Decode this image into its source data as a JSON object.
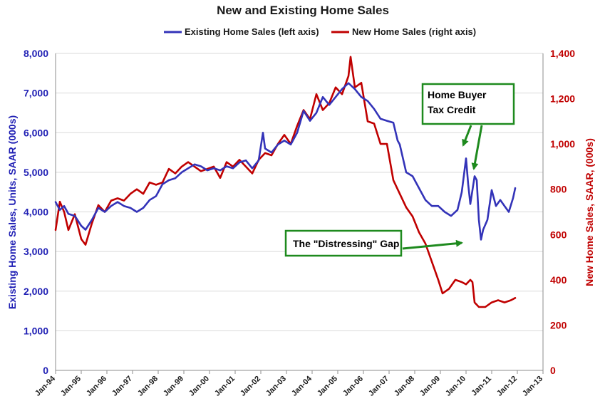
{
  "chart_data": {
    "type": "line",
    "title": "New and Existing Home Sales",
    "ylabel_left": "Existing Home Sales, Units, SAAR (000s)",
    "ylabel_right": "New Home Sales, SAAR, (000s)",
    "y_left_range": [
      0,
      8000
    ],
    "y_right_range": [
      0,
      1400
    ],
    "y_left_ticks": [
      "0",
      "1,000",
      "2,000",
      "3,000",
      "4,000",
      "5,000",
      "6,000",
      "7,000",
      "8,000"
    ],
    "y_right_ticks": [
      "0",
      "200",
      "400",
      "600",
      "800",
      "1,000",
      "1,200",
      "1,400"
    ],
    "x_range": [
      "1994-01",
      "2013-01"
    ],
    "x_ticks": [
      "Jan-94",
      "Jan-95",
      "Jan-96",
      "Jan-97",
      "Jan-98",
      "Jan-99",
      "Jan-00",
      "Jan-01",
      "Jan-02",
      "Jan-03",
      "Jan-04",
      "Jan-05",
      "Jan-06",
      "Jan-07",
      "Jan-08",
      "Jan-09",
      "Jan-10",
      "Jan-11",
      "Jan-12",
      "Jan-13"
    ],
    "grid": "horizontal",
    "legend_position": "top-center",
    "series": [
      {
        "name": "Existing Home Sales (left axis)",
        "axis": "left",
        "color": "#3333b8",
        "points": [
          [
            "1994-01",
            4250
          ],
          [
            "1994-03",
            4050
          ],
          [
            "1994-05",
            4150
          ],
          [
            "1994-07",
            3950
          ],
          [
            "1994-10",
            3900
          ],
          [
            "1995-01",
            3650
          ],
          [
            "1995-03",
            3550
          ],
          [
            "1995-06",
            3800
          ],
          [
            "1995-09",
            4100
          ],
          [
            "1995-12",
            4000
          ],
          [
            "1996-03",
            4150
          ],
          [
            "1996-06",
            4250
          ],
          [
            "1996-09",
            4150
          ],
          [
            "1996-12",
            4100
          ],
          [
            "1997-03",
            4000
          ],
          [
            "1997-06",
            4100
          ],
          [
            "1997-09",
            4300
          ],
          [
            "1997-12",
            4400
          ],
          [
            "1998-03",
            4700
          ],
          [
            "1998-06",
            4800
          ],
          [
            "1998-09",
            4850
          ],
          [
            "1998-12",
            5000
          ],
          [
            "1999-03",
            5100
          ],
          [
            "1999-06",
            5200
          ],
          [
            "1999-09",
            5150
          ],
          [
            "1999-12",
            5050
          ],
          [
            "2000-03",
            5100
          ],
          [
            "2000-06",
            5050
          ],
          [
            "2000-09",
            5150
          ],
          [
            "2000-12",
            5100
          ],
          [
            "2001-03",
            5250
          ],
          [
            "2001-06",
            5300
          ],
          [
            "2001-09",
            5100
          ],
          [
            "2001-12",
            5300
          ],
          [
            "2002-02",
            6000
          ],
          [
            "2002-03",
            5600
          ],
          [
            "2002-06",
            5500
          ],
          [
            "2002-09",
            5700
          ],
          [
            "2002-12",
            5800
          ],
          [
            "2003-03",
            5700
          ],
          [
            "2003-06",
            6000
          ],
          [
            "2003-09",
            6550
          ],
          [
            "2003-12",
            6300
          ],
          [
            "2004-03",
            6500
          ],
          [
            "2004-06",
            6900
          ],
          [
            "2004-09",
            6700
          ],
          [
            "2004-12",
            6900
          ],
          [
            "2005-03",
            7100
          ],
          [
            "2005-06",
            7250
          ],
          [
            "2005-09",
            7100
          ],
          [
            "2005-12",
            6900
          ],
          [
            "2006-03",
            6800
          ],
          [
            "2006-06",
            6600
          ],
          [
            "2006-09",
            6350
          ],
          [
            "2006-12",
            6300
          ],
          [
            "2007-03",
            6250
          ],
          [
            "2007-05",
            5800
          ],
          [
            "2007-06",
            5700
          ],
          [
            "2007-09",
            5000
          ],
          [
            "2007-12",
            4900
          ],
          [
            "2008-03",
            4600
          ],
          [
            "2008-06",
            4300
          ],
          [
            "2008-09",
            4150
          ],
          [
            "2008-12",
            4150
          ],
          [
            "2009-03",
            4000
          ],
          [
            "2009-06",
            3900
          ],
          [
            "2009-09",
            4050
          ],
          [
            "2009-11",
            4500
          ],
          [
            "2010-01",
            5350
          ],
          [
            "2010-02",
            4700
          ],
          [
            "2010-03",
            4200
          ],
          [
            "2010-05",
            4900
          ],
          [
            "2010-06",
            4800
          ],
          [
            "2010-07",
            3800
          ],
          [
            "2010-08",
            3300
          ],
          [
            "2010-09",
            3550
          ],
          [
            "2010-11",
            3800
          ],
          [
            "2011-01",
            4550
          ],
          [
            "2011-03",
            4150
          ],
          [
            "2011-05",
            4300
          ],
          [
            "2011-07",
            4150
          ],
          [
            "2011-09",
            4000
          ],
          [
            "2011-11",
            4350
          ],
          [
            "2011-12",
            4600
          ]
        ]
      },
      {
        "name": "New Home Sales (right axis)",
        "axis": "right",
        "color": "#c00000",
        "points": [
          [
            "1994-01",
            620
          ],
          [
            "1994-03",
            745
          ],
          [
            "1994-05",
            700
          ],
          [
            "1994-07",
            620
          ],
          [
            "1994-10",
            690
          ],
          [
            "1995-01",
            580
          ],
          [
            "1995-03",
            555
          ],
          [
            "1995-06",
            650
          ],
          [
            "1995-09",
            730
          ],
          [
            "1995-12",
            700
          ],
          [
            "1996-03",
            750
          ],
          [
            "1996-06",
            760
          ],
          [
            "1996-09",
            750
          ],
          [
            "1996-12",
            780
          ],
          [
            "1997-03",
            800
          ],
          [
            "1997-06",
            780
          ],
          [
            "1997-09",
            830
          ],
          [
            "1997-12",
            820
          ],
          [
            "1998-03",
            830
          ],
          [
            "1998-06",
            890
          ],
          [
            "1998-09",
            870
          ],
          [
            "1998-12",
            900
          ],
          [
            "1999-03",
            920
          ],
          [
            "1999-06",
            900
          ],
          [
            "1999-09",
            880
          ],
          [
            "1999-12",
            890
          ],
          [
            "2000-03",
            900
          ],
          [
            "2000-06",
            850
          ],
          [
            "2000-09",
            920
          ],
          [
            "2000-12",
            900
          ],
          [
            "2001-03",
            930
          ],
          [
            "2001-06",
            900
          ],
          [
            "2001-09",
            870
          ],
          [
            "2001-12",
            930
          ],
          [
            "2002-03",
            960
          ],
          [
            "2002-06",
            950
          ],
          [
            "2002-09",
            1000
          ],
          [
            "2002-12",
            1040
          ],
          [
            "2003-03",
            1000
          ],
          [
            "2003-06",
            1080
          ],
          [
            "2003-09",
            1150
          ],
          [
            "2003-12",
            1110
          ],
          [
            "2004-03",
            1220
          ],
          [
            "2004-06",
            1150
          ],
          [
            "2004-09",
            1180
          ],
          [
            "2004-12",
            1250
          ],
          [
            "2005-03",
            1220
          ],
          [
            "2005-06",
            1300
          ],
          [
            "2005-07",
            1385
          ],
          [
            "2005-09",
            1250
          ],
          [
            "2005-12",
            1270
          ],
          [
            "2006-03",
            1100
          ],
          [
            "2006-06",
            1090
          ],
          [
            "2006-09",
            1000
          ],
          [
            "2006-12",
            1000
          ],
          [
            "2007-03",
            840
          ],
          [
            "2007-06",
            780
          ],
          [
            "2007-09",
            720
          ],
          [
            "2007-12",
            680
          ],
          [
            "2008-03",
            610
          ],
          [
            "2008-06",
            560
          ],
          [
            "2008-09",
            480
          ],
          [
            "2008-12",
            400
          ],
          [
            "2009-02",
            340
          ],
          [
            "2009-05",
            360
          ],
          [
            "2009-08",
            400
          ],
          [
            "2009-11",
            390
          ],
          [
            "2010-01",
            380
          ],
          [
            "2010-03",
            400
          ],
          [
            "2010-04",
            390
          ],
          [
            "2010-05",
            300
          ],
          [
            "2010-07",
            280
          ],
          [
            "2010-10",
            280
          ],
          [
            "2011-01",
            300
          ],
          [
            "2011-04",
            310
          ],
          [
            "2011-07",
            300
          ],
          [
            "2011-10",
            310
          ],
          [
            "2011-12",
            320
          ]
        ]
      }
    ],
    "annotations": [
      {
        "text_lines": [
          "Home Buyer",
          "Tax Credit"
        ],
        "border_color": "#1e8a1e",
        "arrow_color": "#1e8a1e"
      },
      {
        "text_lines": [
          "The \"Distressing\" Gap"
        ],
        "border_color": "#1e8a1e",
        "arrow_color": "#1e8a1e"
      }
    ]
  }
}
